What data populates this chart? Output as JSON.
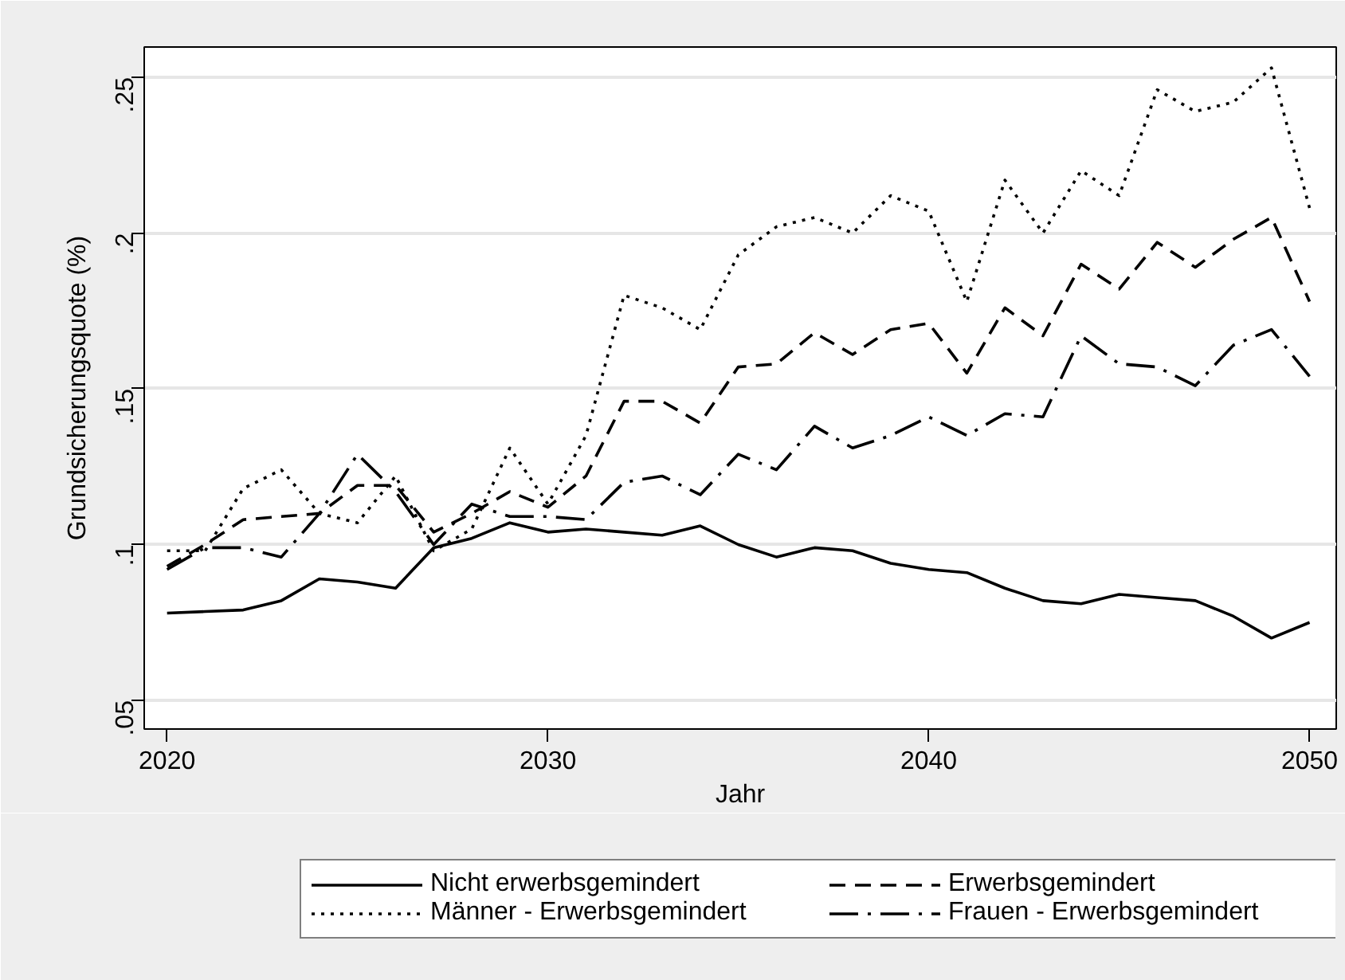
{
  "chart_data": {
    "type": "line",
    "xlabel": "Jahr",
    "ylabel": "Grundsicherungsquote (%)",
    "x": [
      2020,
      2021,
      2022,
      2023,
      2024,
      2025,
      2026,
      2027,
      2028,
      2029,
      2030,
      2031,
      2032,
      2033,
      2034,
      2035,
      2036,
      2037,
      2038,
      2039,
      2040,
      2041,
      2042,
      2043,
      2044,
      2045,
      2046,
      2047,
      2048,
      2049,
      2050
    ],
    "series": [
      {
        "name": "Nicht erwerbsgemindert",
        "color": "#000000",
        "line_style": "solid",
        "values": [
          0.078,
          0.0785,
          0.079,
          0.082,
          0.089,
          0.088,
          0.086,
          0.099,
          0.102,
          0.107,
          0.104,
          0.105,
          0.104,
          0.103,
          0.106,
          0.1,
          0.096,
          0.099,
          0.098,
          0.094,
          0.092,
          0.091,
          0.086,
          0.082,
          0.081,
          0.084,
          0.083,
          0.082,
          0.077,
          0.07,
          0.075
        ]
      },
      {
        "name": "Erwerbsgemindert",
        "color": "#000000",
        "line_style": "dashed",
        "values": [
          0.093,
          0.1,
          0.108,
          0.109,
          0.11,
          0.119,
          0.119,
          0.104,
          0.11,
          0.117,
          0.112,
          0.122,
          0.146,
          0.146,
          0.139,
          0.157,
          0.158,
          0.168,
          0.161,
          0.169,
          0.171,
          0.155,
          0.176,
          0.167,
          0.19,
          0.182,
          0.197,
          0.189,
          0.198,
          0.205,
          0.178
        ]
      },
      {
        "name": "Männer - Erwerbsgemindert",
        "color": "#000000",
        "line_style": "dotted",
        "values": [
          0.098,
          0.098,
          0.118,
          0.124,
          0.11,
          0.107,
          0.122,
          0.098,
          0.105,
          0.131,
          0.113,
          0.135,
          0.18,
          0.176,
          0.169,
          0.193,
          0.202,
          0.205,
          0.2,
          0.212,
          0.207,
          0.178,
          0.217,
          0.2,
          0.22,
          0.212,
          0.246,
          0.239,
          0.242,
          0.253,
          0.208
        ]
      },
      {
        "name": "Frauen - Erwerbsgemindert",
        "color": "#000000",
        "line_style": "dashdot",
        "values": [
          0.092,
          0.099,
          0.099,
          0.096,
          0.11,
          0.129,
          0.117,
          0.1,
          0.113,
          0.109,
          0.109,
          0.108,
          0.12,
          0.122,
          0.116,
          0.129,
          0.124,
          0.138,
          0.131,
          0.135,
          0.141,
          0.135,
          0.142,
          0.141,
          0.167,
          0.158,
          0.157,
          0.151,
          0.164,
          0.169,
          0.154
        ]
      }
    ],
    "xlim": [
      2019.4,
      2050.7
    ],
    "xticks": [
      2020,
      2030,
      2040,
      2050
    ],
    "ylim": [
      0.0408,
      0.2597
    ],
    "yticks": [
      {
        "value": 0.05,
        "label": ".05"
      },
      {
        "value": 0.1,
        "label": ".1"
      },
      {
        "value": 0.15,
        "label": ".15"
      },
      {
        "value": 0.2,
        "label": ".2"
      },
      {
        "value": 0.25,
        "label": ".25"
      }
    ],
    "grid": "y",
    "legend": "bottom"
  }
}
